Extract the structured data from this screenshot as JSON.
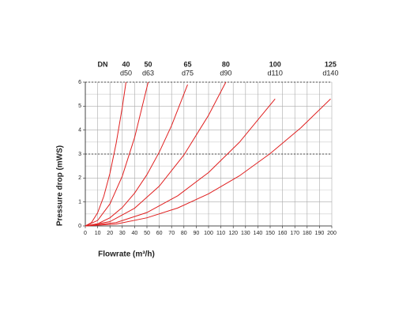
{
  "chart_data": {
    "type": "line",
    "xlabel": "Flowrate (m³/h)",
    "ylabel": "Pressure drop (mWS)",
    "legend_title": "DN",
    "xlim": [
      0,
      200
    ],
    "ylim": [
      0,
      6
    ],
    "xticks": [
      0,
      10,
      20,
      30,
      40,
      50,
      60,
      70,
      80,
      90,
      100,
      110,
      120,
      130,
      140,
      150,
      160,
      170,
      180,
      190,
      200
    ],
    "yticks": [
      0,
      1,
      2,
      3,
      4,
      5,
      6
    ],
    "y_minor_grid": [
      0.5,
      1.5,
      2.5,
      3.5,
      4.5,
      5.5
    ],
    "y_dashed_grid": [
      3,
      6
    ],
    "grid": true,
    "series": [
      {
        "name": "40",
        "subtitle": "d50",
        "color": "#e02020",
        "x": [
          0,
          5,
          10,
          15,
          20,
          25,
          30,
          33
        ],
        "values": [
          0,
          0.14,
          0.55,
          1.24,
          2.2,
          3.44,
          4.95,
          6.0
        ]
      },
      {
        "name": "50",
        "subtitle": "d63",
        "color": "#e02020",
        "x": [
          0,
          10,
          20,
          30,
          40,
          51
        ],
        "values": [
          0,
          0.23,
          0.92,
          2.08,
          3.69,
          6.0
        ]
      },
      {
        "name": "65",
        "subtitle": "d75",
        "color": "#e02020",
        "x": [
          0,
          10,
          20,
          30,
          40,
          50,
          60,
          70,
          83
        ],
        "values": [
          0,
          0.09,
          0.34,
          0.77,
          1.37,
          2.14,
          3.08,
          4.19,
          5.9
        ]
      },
      {
        "name": "80",
        "subtitle": "d90",
        "color": "#e02020",
        "x": [
          0,
          20,
          40,
          60,
          80,
          100,
          114
        ],
        "values": [
          0,
          0.18,
          0.74,
          1.66,
          2.96,
          4.62,
          6.0
        ]
      },
      {
        "name": "100",
        "subtitle": "d110",
        "color": "#e02020",
        "x": [
          0,
          25,
          50,
          75,
          100,
          125,
          154
        ],
        "values": [
          0,
          0.14,
          0.56,
          1.26,
          2.23,
          3.49,
          5.3
        ]
      },
      {
        "name": "125",
        "subtitle": "d140",
        "color": "#e02020",
        "x": [
          0,
          25,
          50,
          75,
          100,
          125,
          150,
          175,
          199
        ],
        "values": [
          0,
          0.08,
          0.34,
          0.75,
          1.34,
          2.09,
          3.02,
          4.1,
          5.3
        ]
      }
    ]
  }
}
